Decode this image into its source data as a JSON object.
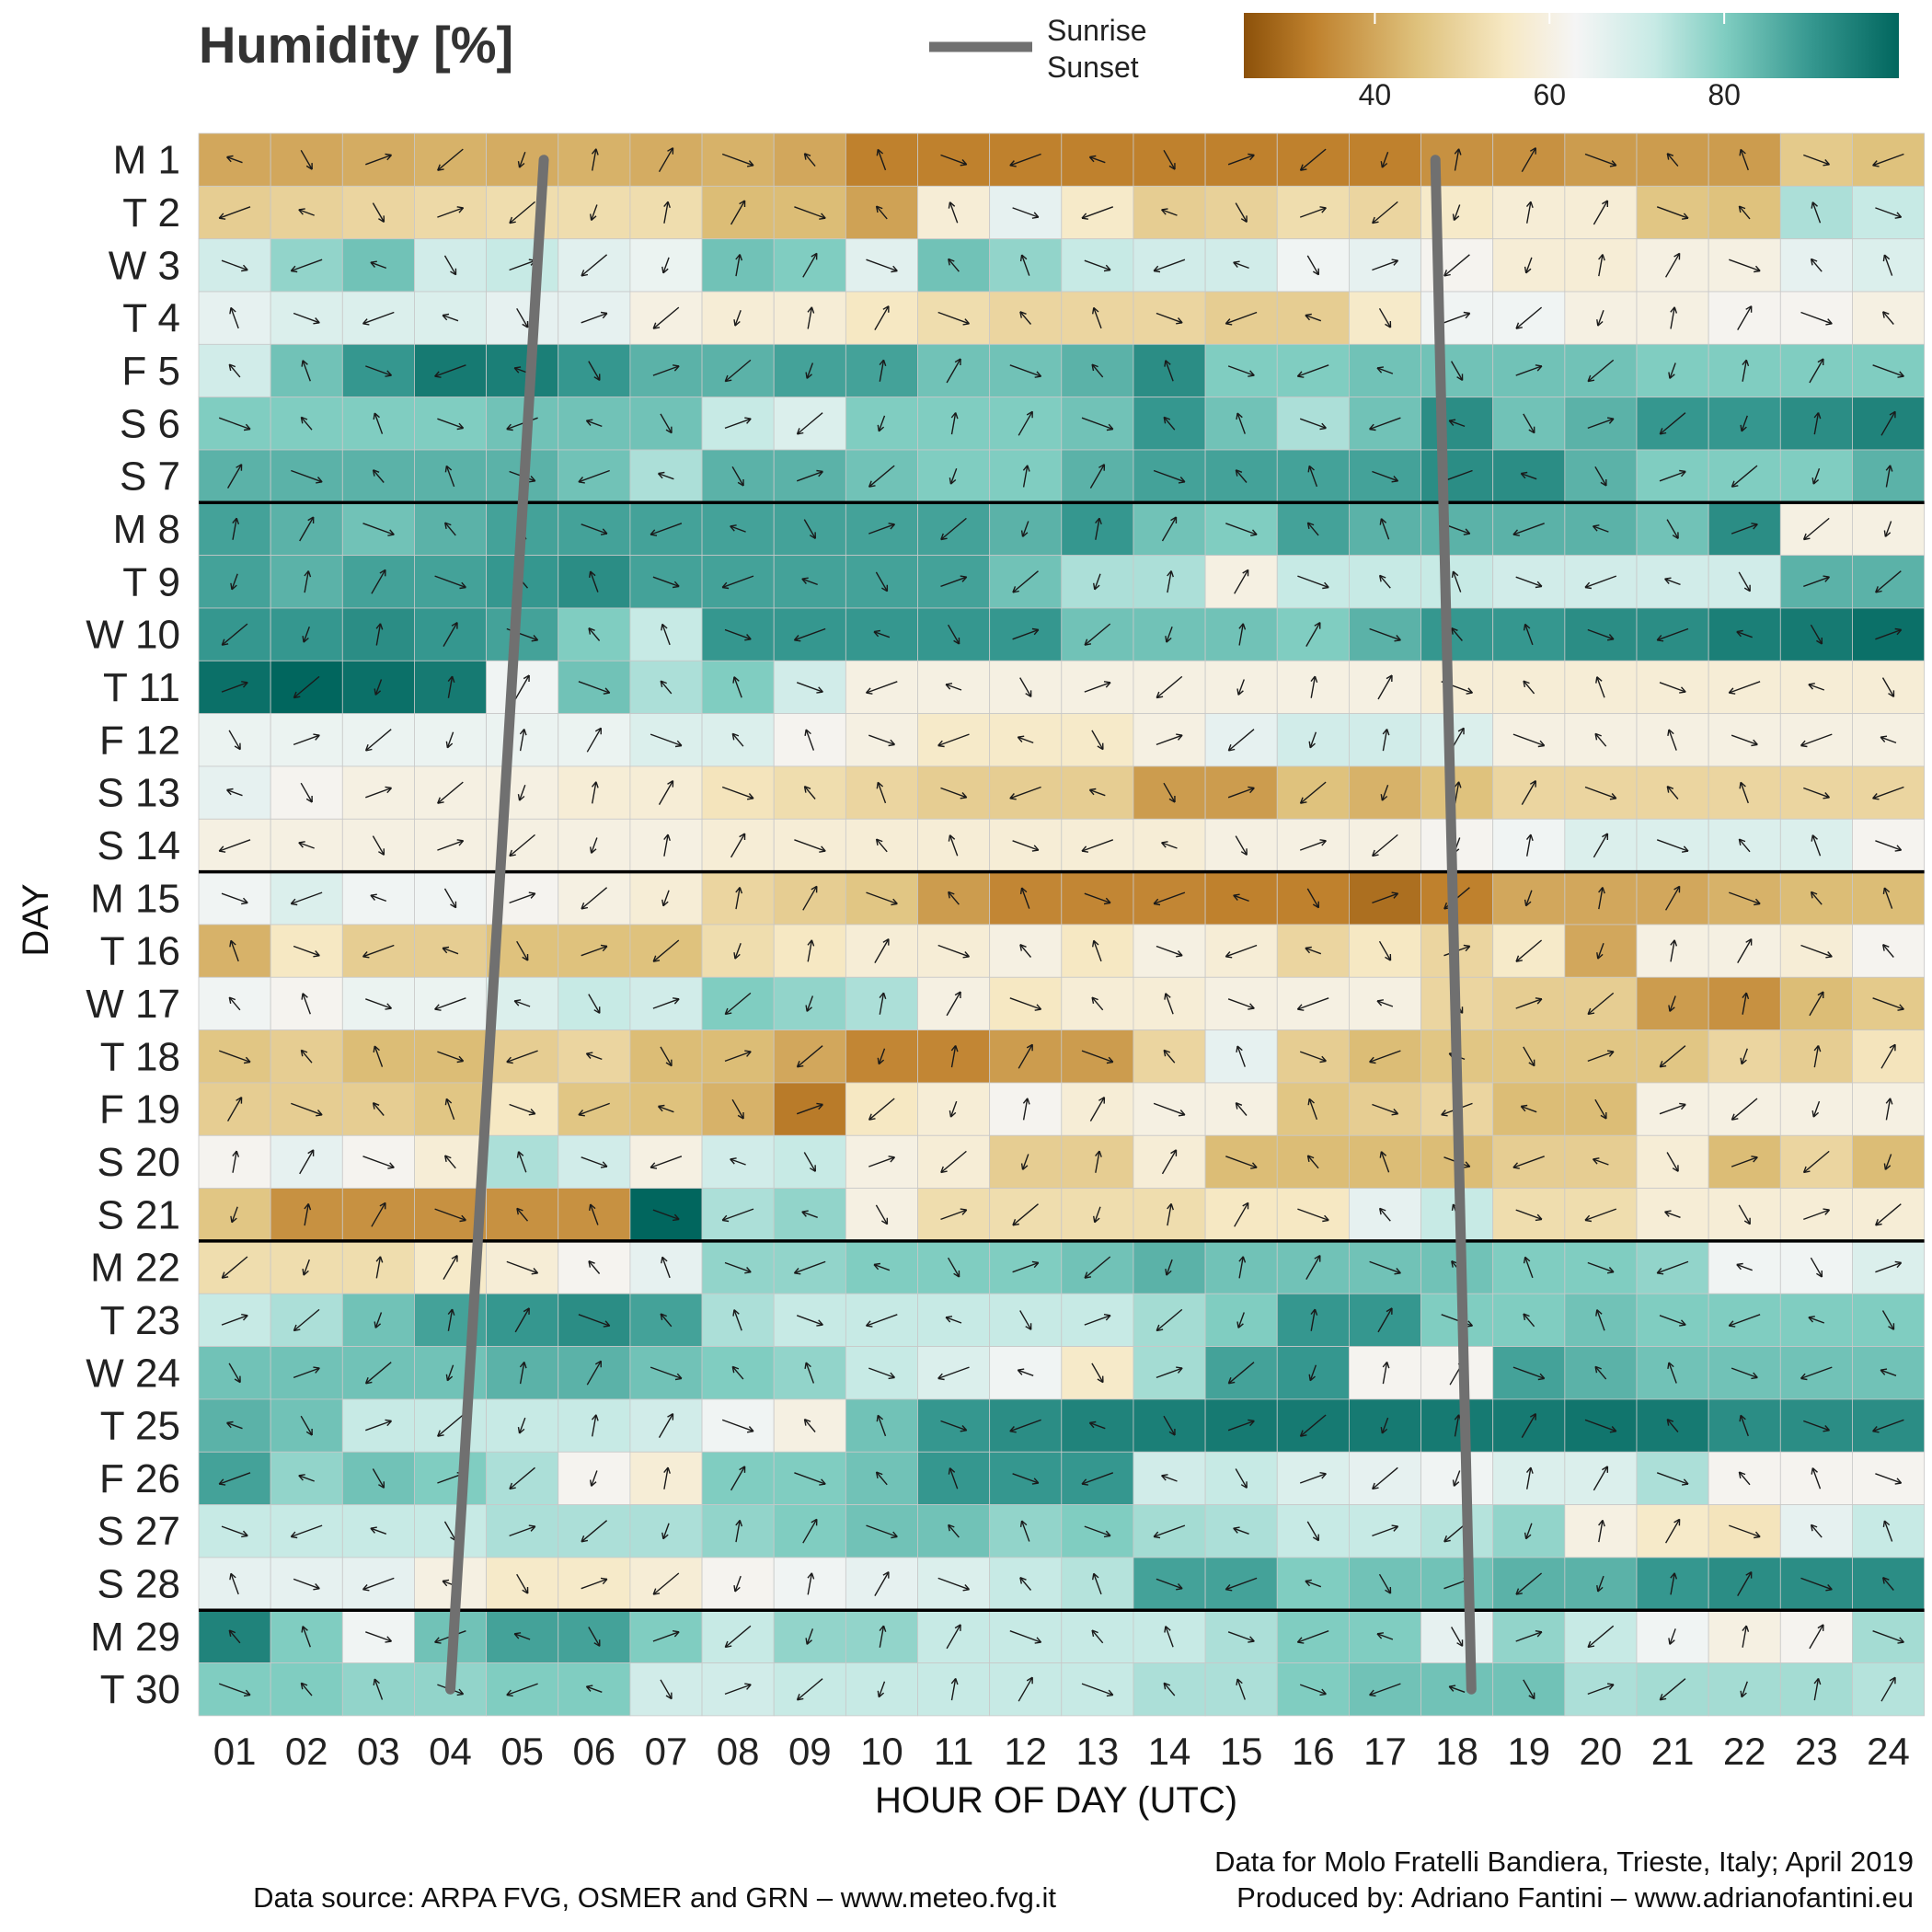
{
  "chart_data": {
    "type": "heatmap",
    "title": "Humidity [%]",
    "xlabel": "HOUR OF DAY (UTC)",
    "ylabel": "DAY",
    "x_ticks": [
      "01",
      "02",
      "03",
      "04",
      "05",
      "06",
      "07",
      "08",
      "09",
      "10",
      "11",
      "12",
      "13",
      "14",
      "15",
      "16",
      "17",
      "18",
      "19",
      "20",
      "21",
      "22",
      "23",
      "24"
    ],
    "y_ticks": [
      "M 1",
      "T 2",
      "W 3",
      "T 4",
      "F 5",
      "S 6",
      "S 7",
      "M 8",
      "T 9",
      "W 10",
      "T 11",
      "F 12",
      "S 13",
      "S 14",
      "M 15",
      "T 16",
      "W 17",
      "T 18",
      "F 19",
      "S 20",
      "S 21",
      "M 22",
      "T 23",
      "W 24",
      "T 25",
      "F 26",
      "S 27",
      "S 28",
      "M 29",
      "T 30"
    ],
    "week_separators_after": [
      "S 7",
      "S 14",
      "S 21",
      "S 28"
    ],
    "color_scale": {
      "range": [
        25,
        100
      ],
      "ticks": [
        40,
        60,
        80
      ],
      "colors": [
        "#8c510a",
        "#bf812d",
        "#dfc27d",
        "#f6e8c3",
        "#f5f5f5",
        "#c7eae5",
        "#80cdc1",
        "#35978f",
        "#01665e"
      ],
      "stops": [
        25,
        33,
        45,
        55,
        63,
        72,
        80,
        90,
        100
      ]
    },
    "humidity": [
      [
        40,
        40,
        41,
        42,
        41,
        42,
        41,
        42,
        40,
        33,
        33,
        33,
        33,
        33,
        33,
        33,
        33,
        36,
        36,
        38,
        38,
        38,
        47,
        45
      ],
      [
        48,
        49,
        50,
        51,
        52,
        52,
        52,
        44,
        44,
        39,
        58,
        66,
        56,
        48,
        49,
        52,
        50,
        56,
        58,
        58,
        46,
        45,
        75,
        72
      ],
      [
        70,
        78,
        82,
        70,
        72,
        67,
        65,
        82,
        80,
        67,
        82,
        78,
        72,
        70,
        70,
        64,
        66,
        62,
        58,
        58,
        60,
        60,
        66,
        68
      ],
      [
        66,
        68,
        68,
        68,
        66,
        66,
        60,
        58,
        58,
        55,
        52,
        50,
        50,
        50,
        48,
        48,
        56,
        64,
        64,
        60,
        60,
        62,
        62,
        60
      ],
      [
        70,
        82,
        90,
        96,
        95,
        90,
        85,
        85,
        88,
        88,
        82,
        82,
        85,
        92,
        80,
        80,
        82,
        82,
        82,
        82,
        80,
        80,
        80,
        80
      ],
      [
        80,
        80,
        80,
        80,
        82,
        82,
        82,
        72,
        68,
        80,
        80,
        80,
        82,
        90,
        82,
        75,
        82,
        92,
        82,
        85,
        90,
        90,
        92,
        94
      ],
      [
        85,
        85,
        85,
        85,
        85,
        82,
        75,
        85,
        85,
        82,
        80,
        80,
        85,
        88,
        88,
        88,
        88,
        92,
        92,
        85,
        80,
        80,
        80,
        85
      ],
      [
        88,
        85,
        82,
        85,
        88,
        88,
        88,
        88,
        88,
        88,
        88,
        85,
        90,
        82,
        80,
        88,
        85,
        85,
        85,
        85,
        82,
        92,
        60,
        60
      ],
      [
        88,
        85,
        88,
        88,
        90,
        92,
        88,
        88,
        88,
        88,
        88,
        82,
        75,
        75,
        60,
        72,
        72,
        72,
        70,
        70,
        70,
        70,
        85,
        85
      ],
      [
        90,
        90,
        92,
        90,
        88,
        80,
        72,
        90,
        90,
        90,
        90,
        90,
        82,
        82,
        82,
        80,
        85,
        90,
        90,
        92,
        92,
        95,
        96,
        98
      ],
      [
        98,
        100,
        98,
        96,
        64,
        82,
        75,
        80,
        70,
        60,
        60,
        60,
        60,
        60,
        60,
        60,
        60,
        58,
        58,
        58,
        58,
        58,
        58,
        58
      ],
      [
        65,
        65,
        65,
        65,
        65,
        65,
        68,
        68,
        62,
        60,
        56,
        56,
        56,
        60,
        66,
        70,
        70,
        68,
        60,
        60,
        60,
        60,
        60,
        60
      ],
      [
        66,
        62,
        60,
        60,
        60,
        58,
        58,
        54,
        52,
        50,
        48,
        48,
        48,
        38,
        38,
        45,
        42,
        45,
        50,
        50,
        50,
        50,
        50,
        50
      ],
      [
        60,
        60,
        60,
        60,
        60,
        60,
        60,
        58,
        58,
        58,
        58,
        58,
        58,
        58,
        60,
        60,
        60,
        62,
        64,
        68,
        68,
        68,
        68,
        62
      ],
      [
        64,
        68,
        64,
        64,
        62,
        60,
        58,
        50,
        48,
        46,
        38,
        34,
        34,
        34,
        33,
        33,
        30,
        33,
        40,
        40,
        40,
        42,
        44,
        44
      ],
      [
        42,
        55,
        48,
        48,
        45,
        45,
        45,
        52,
        55,
        58,
        58,
        60,
        55,
        60,
        58,
        50,
        55,
        50,
        56,
        40,
        60,
        60,
        58,
        62
      ],
      [
        64,
        62,
        65,
        65,
        68,
        72,
        70,
        80,
        78,
        75,
        60,
        55,
        58,
        58,
        60,
        60,
        60,
        50,
        48,
        48,
        38,
        36,
        44,
        47
      ],
      [
        46,
        48,
        44,
        44,
        48,
        50,
        44,
        44,
        40,
        34,
        34,
        38,
        38,
        50,
        66,
        48,
        44,
        46,
        46,
        46,
        46,
        50,
        48,
        54
      ],
      [
        48,
        48,
        48,
        46,
        55,
        46,
        45,
        42,
        32,
        55,
        58,
        62,
        58,
        60,
        60,
        46,
        48,
        50,
        44,
        44,
        60,
        60,
        60,
        60
      ],
      [
        62,
        66,
        62,
        58,
        75,
        70,
        60,
        70,
        72,
        60,
        58,
        48,
        48,
        58,
        44,
        44,
        44,
        44,
        48,
        48,
        58,
        44,
        50,
        44
      ],
      [
        46,
        36,
        36,
        36,
        36,
        36,
        100,
        75,
        78,
        60,
        52,
        52,
        52,
        52,
        55,
        55,
        66,
        72,
        52,
        52,
        58,
        58,
        58,
        58
      ],
      [
        52,
        52,
        52,
        56,
        58,
        62,
        66,
        78,
        78,
        80,
        80,
        80,
        82,
        85,
        82,
        82,
        82,
        82,
        80,
        80,
        78,
        64,
        64,
        68
      ],
      [
        72,
        75,
        82,
        88,
        90,
        92,
        88,
        75,
        72,
        72,
        72,
        72,
        72,
        76,
        80,
        90,
        90,
        80,
        80,
        82,
        80,
        80,
        80,
        80
      ],
      [
        82,
        82,
        82,
        82,
        85,
        85,
        82,
        80,
        78,
        72,
        68,
        64,
        56,
        76,
        88,
        90,
        62,
        62,
        88,
        85,
        82,
        82,
        82,
        82
      ],
      [
        85,
        82,
        72,
        72,
        72,
        72,
        70,
        64,
        60,
        82,
        90,
        92,
        94,
        95,
        96,
        96,
        96,
        96,
        96,
        97,
        96,
        92,
        92,
        92
      ],
      [
        88,
        78,
        82,
        80,
        75,
        62,
        58,
        80,
        80,
        82,
        90,
        90,
        90,
        70,
        72,
        68,
        66,
        64,
        68,
        68,
        75,
        62,
        62,
        62
      ],
      [
        72,
        72,
        72,
        72,
        75,
        75,
        75,
        78,
        80,
        82,
        82,
        78,
        80,
        76,
        75,
        72,
        72,
        74,
        78,
        60,
        56,
        54,
        66,
        72
      ],
      [
        66,
        66,
        66,
        60,
        56,
        56,
        58,
        62,
        64,
        66,
        68,
        72,
        74,
        88,
        88,
        80,
        82,
        82,
        85,
        85,
        90,
        92,
        92,
        92
      ],
      [
        94,
        80,
        64,
        82,
        88,
        88,
        80,
        72,
        78,
        78,
        72,
        72,
        72,
        72,
        75,
        80,
        80,
        66,
        78,
        72,
        64,
        60,
        62,
        76
      ],
      [
        80,
        80,
        78,
        78,
        80,
        80,
        70,
        70,
        72,
        72,
        72,
        72,
        72,
        75,
        75,
        80,
        82,
        82,
        82,
        75,
        76,
        76,
        76,
        74
      ]
    ],
    "wind_style": "Arrow per cell; direction shown by arrow orientation, length by wind speed",
    "sun_lines": {
      "label_sunrise": "Sunrise",
      "label_sunset": "Sunset",
      "color": "#707070",
      "sunrise_hour_day1": 5.3,
      "sunrise_hour_day30": 4.0,
      "sunset_hour_day1": 17.7,
      "sunset_hour_day30": 18.2
    }
  },
  "captions": {
    "data_for": "Data for Molo Fratelli Bandiera, Trieste, Italy; April 2019",
    "produced_by": "Produced by: Adriano Fantini  – www.adrianofantini.eu",
    "data_source": "Data source: ARPA FVG, OSMER and GRN – www.meteo.fvg.it"
  }
}
